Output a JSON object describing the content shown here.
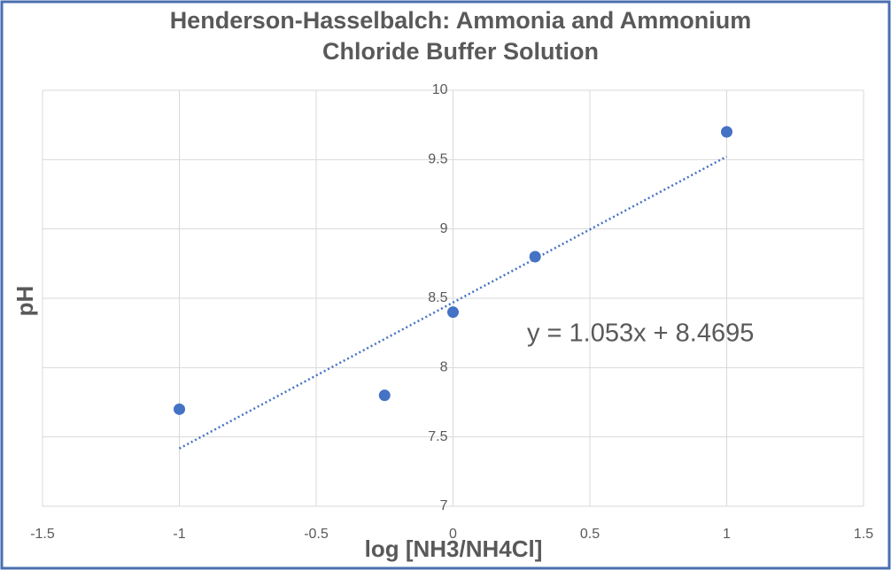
{
  "chart_data": {
    "type": "scatter",
    "title": "Henderson-Hasselbalch: Ammonia and Ammonium Chloride Buffer Solution",
    "x_label": "log [NH3/NH4Cl]",
    "y_label": "pH",
    "series": [
      {
        "name": "pH",
        "color": "#4472c4",
        "x": [
          -1,
          -0.25,
          0,
          0.3,
          1
        ],
        "values": [
          7.7,
          7.8,
          8.4,
          8.8,
          9.7
        ]
      }
    ],
    "trendline": {
      "slope": 1.053,
      "intercept": 8.4695,
      "label": "y = 1.053x + 8.4695"
    },
    "xlim": [
      -1.5,
      1.5
    ],
    "xticks": [
      -1.5,
      -1,
      -0.5,
      0,
      0.5,
      1,
      1.5
    ],
    "ylim": [
      7,
      10
    ],
    "yticks": [
      7,
      7.5,
      8,
      8.5,
      9,
      9.5,
      10
    ],
    "grid": true
  }
}
